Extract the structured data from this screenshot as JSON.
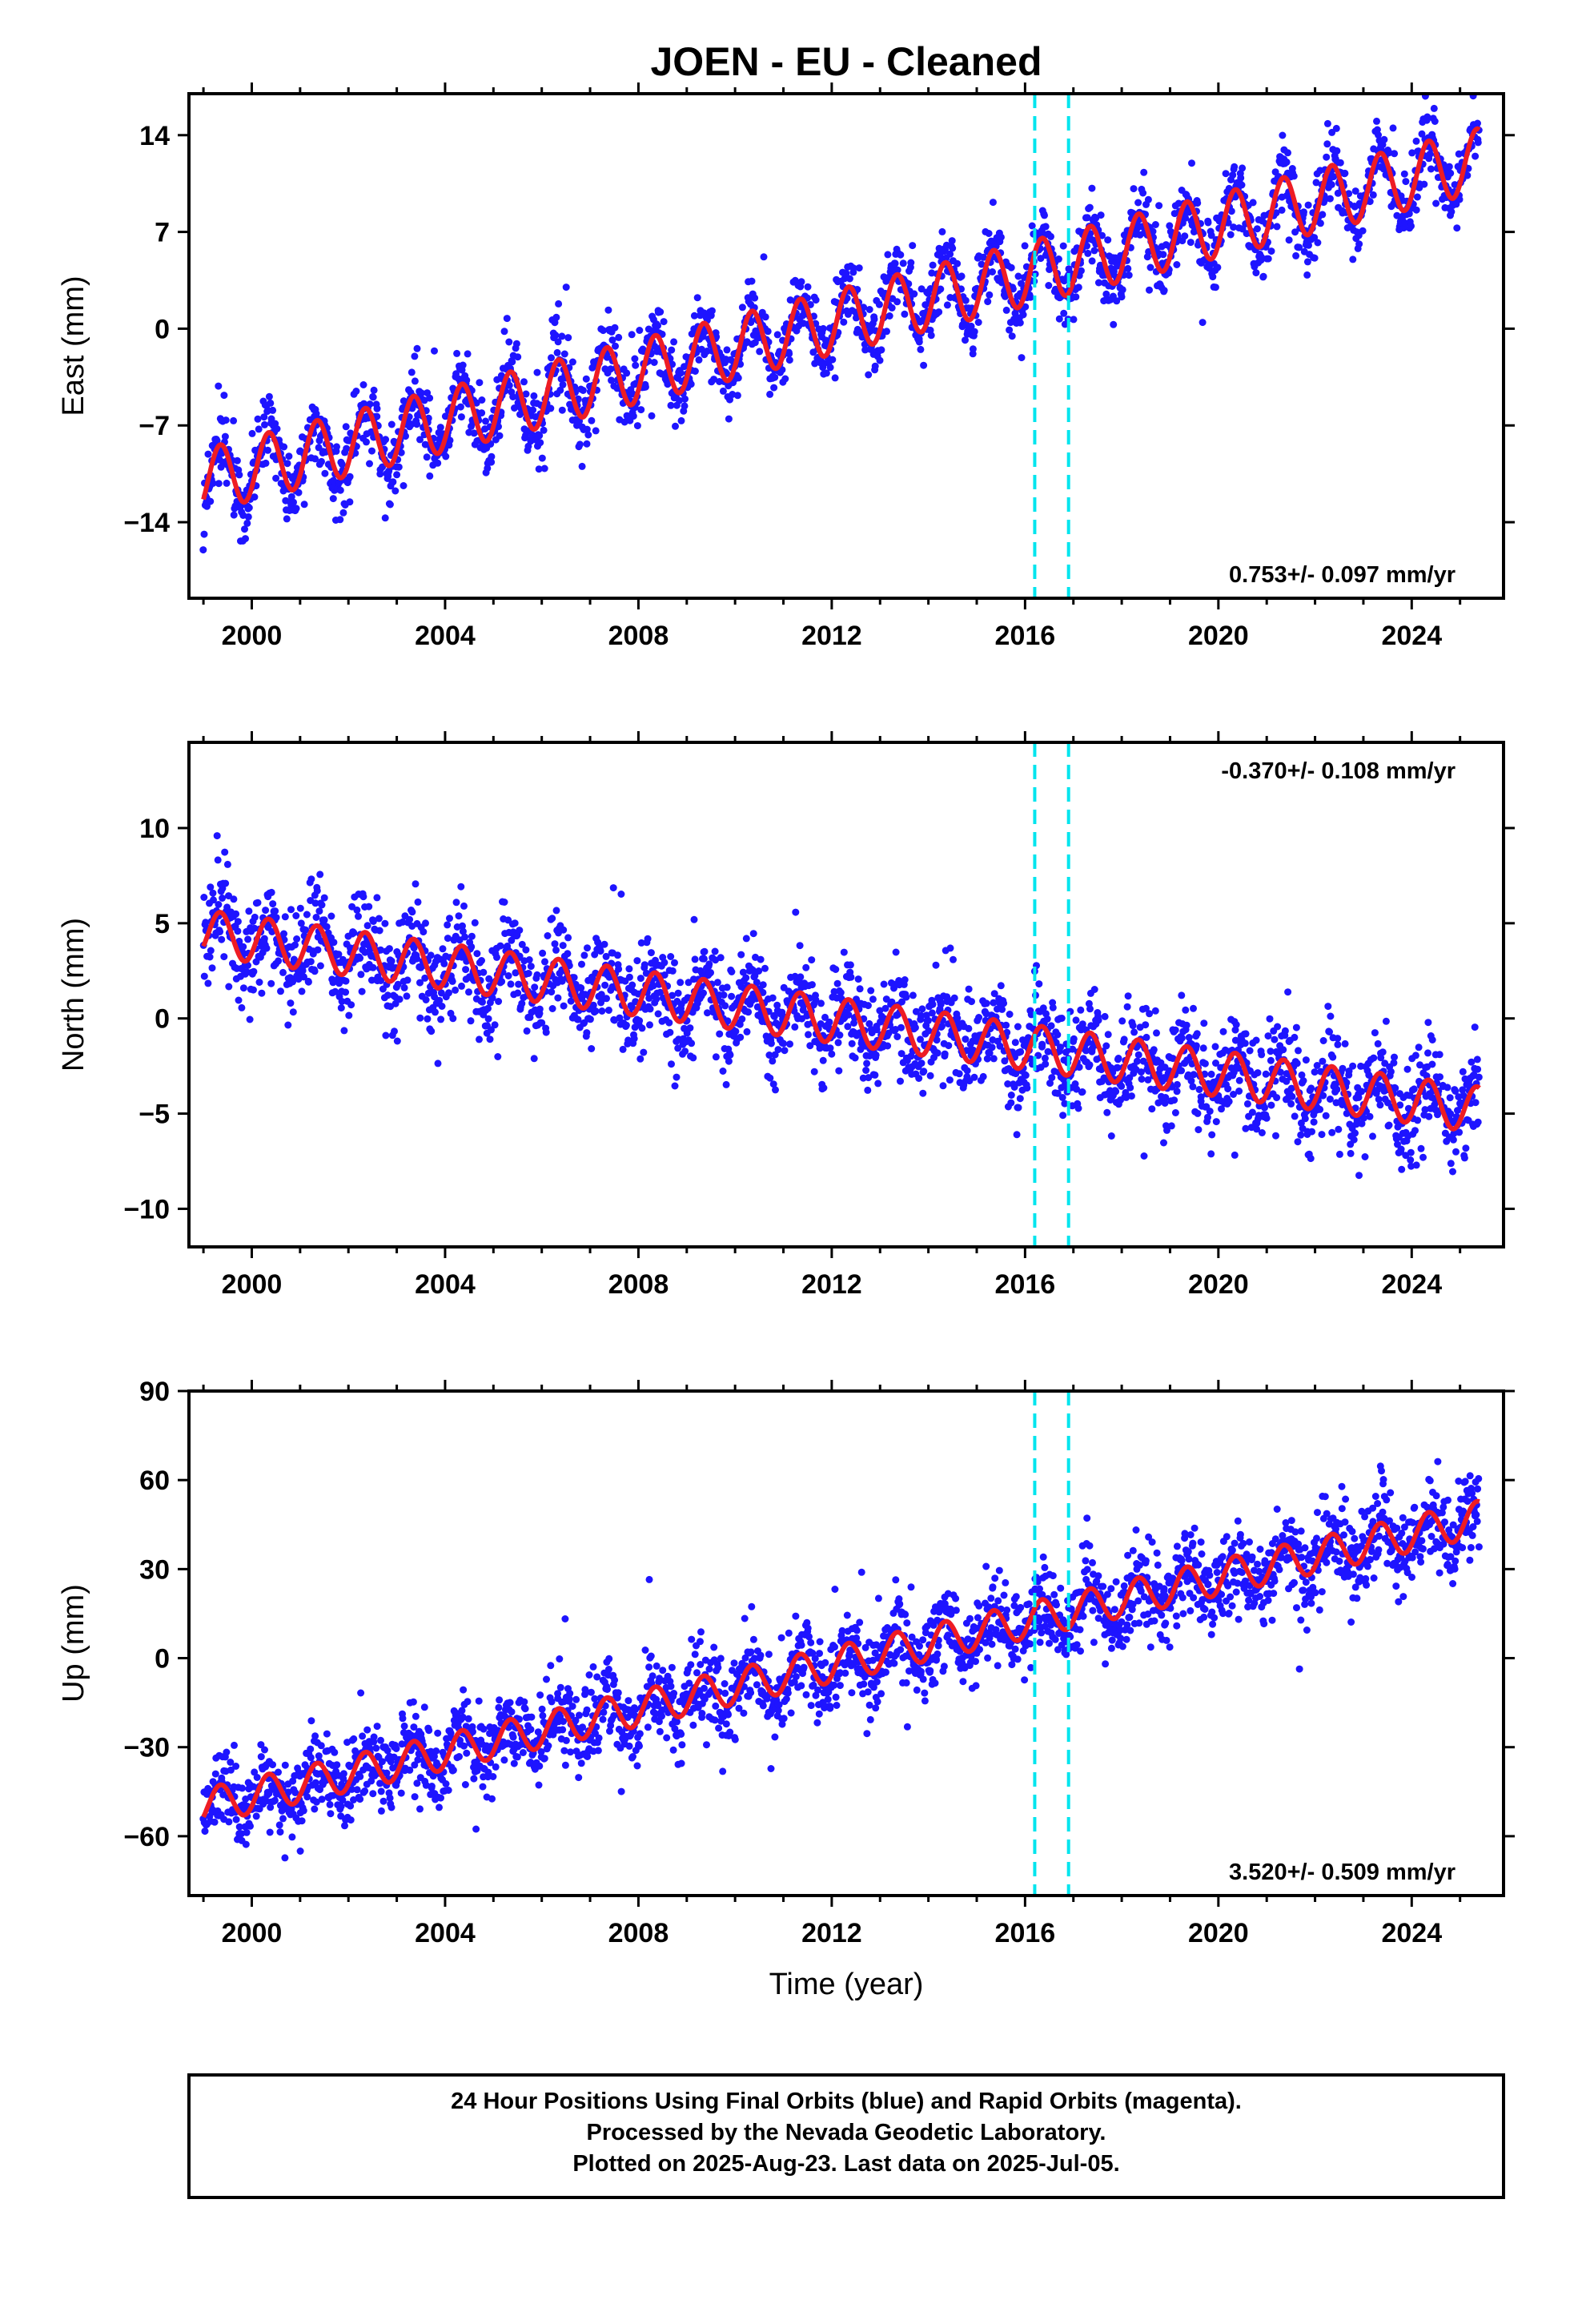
{
  "title": "JOEN  - EU - Cleaned",
  "colors": {
    "points": "#1e14ff",
    "model": "#ee1c24",
    "events": "#00e5ee",
    "frame": "#000000"
  },
  "chart_data": [
    {
      "type": "scatter",
      "panel": "east",
      "ylabel": "East (mm)",
      "xlabel": "",
      "xlim": [
        1998.7,
        2025.9
      ],
      "ylim": [
        -19.5,
        17.0
      ],
      "yticks": [
        14,
        7,
        0,
        -7,
        -14
      ],
      "xticks": [
        2000,
        2004,
        2008,
        2012,
        2016,
        2020,
        2024
      ],
      "rate_label": "0.753+/- 0.097 mm/yr",
      "rate_position": "bottom-right",
      "events": [
        2016.2,
        2016.9
      ],
      "series_shape": {
        "start": [
          1999.0,
          -11.0
        ],
        "end": [
          2025.4,
          12.2
        ],
        "annual_amplitude": 2.3,
        "noise": 1.3
      },
      "series": [
        {
          "type": "model_line",
          "x": [
            1999.0,
            2001.0,
            2003.0,
            2005.0,
            2007.0,
            2009.0,
            2011.0,
            2013.0,
            2015.0,
            2017.0,
            2019.0,
            2021.0,
            2023.0,
            2025.0,
            2025.4
          ],
          "y": [
            -11.0,
            -9.2,
            -7.5,
            -5.6,
            -3.8,
            -2.2,
            -0.4,
            1.3,
            3.0,
            4.7,
            6.5,
            8.2,
            10.0,
            11.7,
            12.2
          ]
        }
      ]
    },
    {
      "type": "scatter",
      "panel": "north",
      "ylabel": "North (mm)",
      "xlabel": "",
      "xlim": [
        1998.7,
        2025.9
      ],
      "ylim": [
        -12.0,
        14.5
      ],
      "yticks": [
        10,
        5,
        0,
        -5,
        -10
      ],
      "xticks": [
        2000,
        2004,
        2008,
        2012,
        2016,
        2020,
        2024
      ],
      "rate_label": "-0.370+/- 0.108 mm/yr",
      "rate_position": "top-right",
      "events": [
        2016.2,
        2016.9
      ],
      "series_shape": {
        "start": [
          1999.0,
          4.5
        ],
        "end": [
          2025.4,
          -4.8
        ],
        "annual_amplitude": 1.2,
        "noise": 1.3
      },
      "series": [
        {
          "type": "model_line",
          "x": [
            1999.0,
            2001.0,
            2003.0,
            2005.0,
            2007.0,
            2009.0,
            2011.0,
            2013.0,
            2015.0,
            2017.0,
            2019.0,
            2021.0,
            2023.0,
            2025.0,
            2025.4
          ],
          "y": [
            4.5,
            4.0,
            3.4,
            2.6,
            1.9,
            1.2,
            0.5,
            -0.2,
            -0.9,
            -1.6,
            -2.3,
            -3.0,
            -3.8,
            -4.6,
            -4.8
          ]
        }
      ]
    },
    {
      "type": "scatter",
      "panel": "up",
      "ylabel": "Up (mm)",
      "xlabel": "Time (year)",
      "xlim": [
        1998.7,
        2025.9
      ],
      "ylim": [
        -80,
        90
      ],
      "yticks": [
        90,
        60,
        30,
        0,
        -30,
        -60
      ],
      "xticks": [
        2000,
        2004,
        2008,
        2012,
        2016,
        2020,
        2024
      ],
      "rate_label": "3.520+/- 0.509 mm/yr",
      "rate_position": "bottom-right",
      "events": [
        2016.2,
        2016.9
      ],
      "series_shape": {
        "start": [
          1999.0,
          -50.0
        ],
        "end": [
          2025.4,
          47.0
        ],
        "annual_amplitude": 6.0,
        "noise": 7.0
      },
      "series": [
        {
          "type": "model_line",
          "x": [
            1999.0,
            2001.0,
            2003.0,
            2005.0,
            2007.0,
            2009.0,
            2011.0,
            2013.0,
            2015.0,
            2016.2,
            2017.0,
            2019.0,
            2021.0,
            2023.0,
            2025.0,
            2025.4
          ],
          "y": [
            -50,
            -43,
            -35,
            -28,
            -21,
            -14,
            -7,
            0,
            7,
            11,
            18,
            26,
            33,
            38,
            44,
            47
          ]
        }
      ]
    }
  ],
  "footer": {
    "line1": "24 Hour Positions Using Final Orbits (blue) and Rapid Orbits (magenta).",
    "line2": "Processed by the Nevada Geodetic Laboratory.",
    "line3": "Plotted on 2025-Aug-23. Last data on 2025-Jul-05."
  }
}
